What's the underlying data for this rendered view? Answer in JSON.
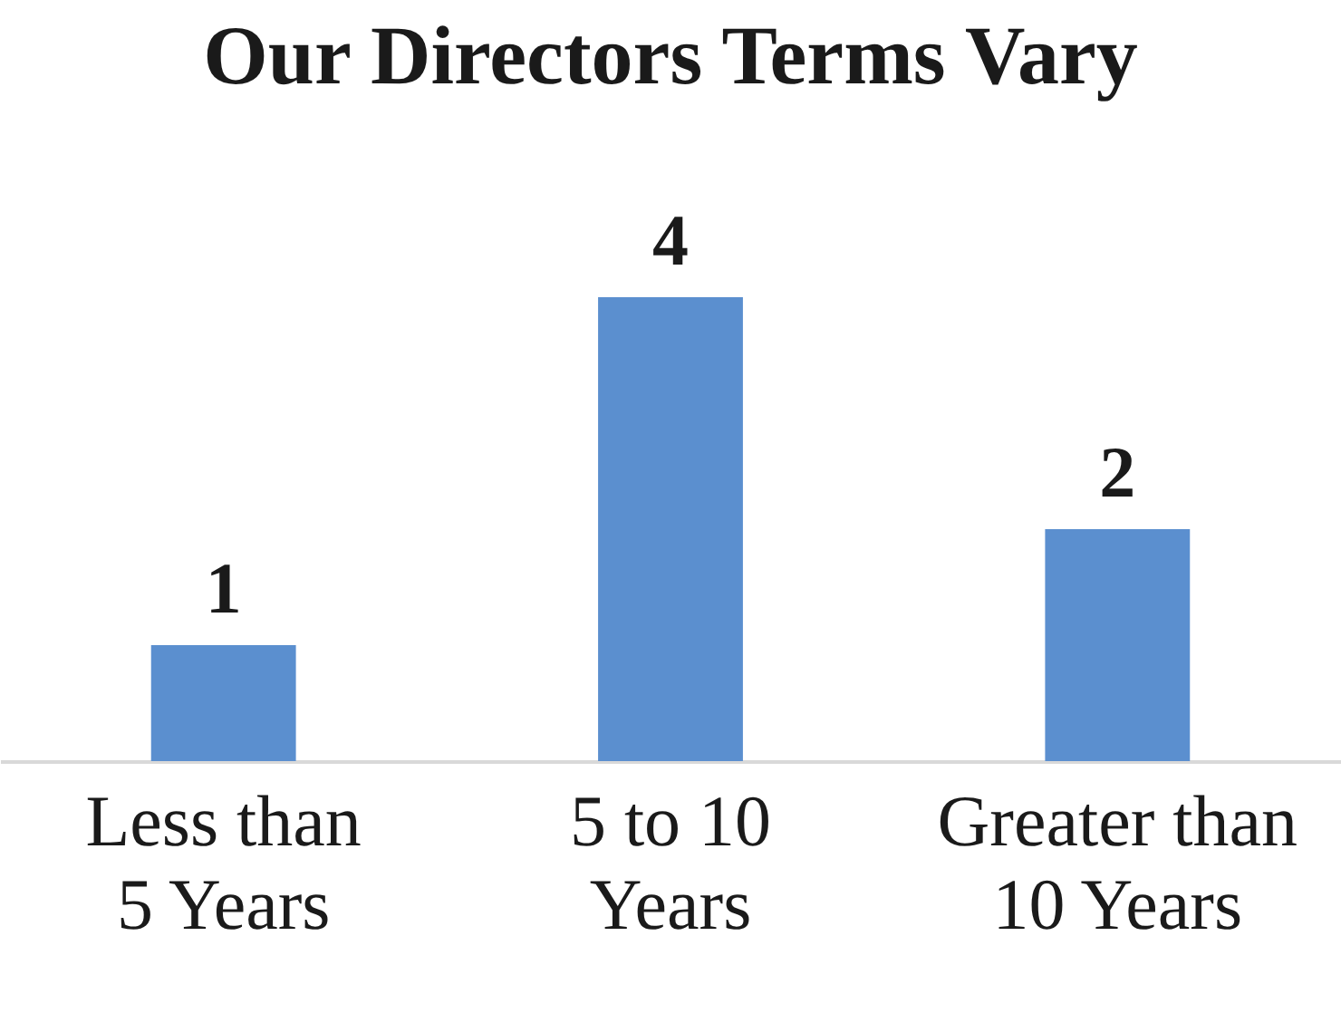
{
  "chart_data": {
    "type": "bar",
    "title": "Our Directors Terms Vary",
    "categories": [
      "Less than 5 Years",
      "5 to 10 Years",
      "Greater than 10 Years"
    ],
    "values": [
      1,
      4,
      2
    ],
    "color": "#5b8fcf",
    "data_labels": true,
    "grid": false
  }
}
